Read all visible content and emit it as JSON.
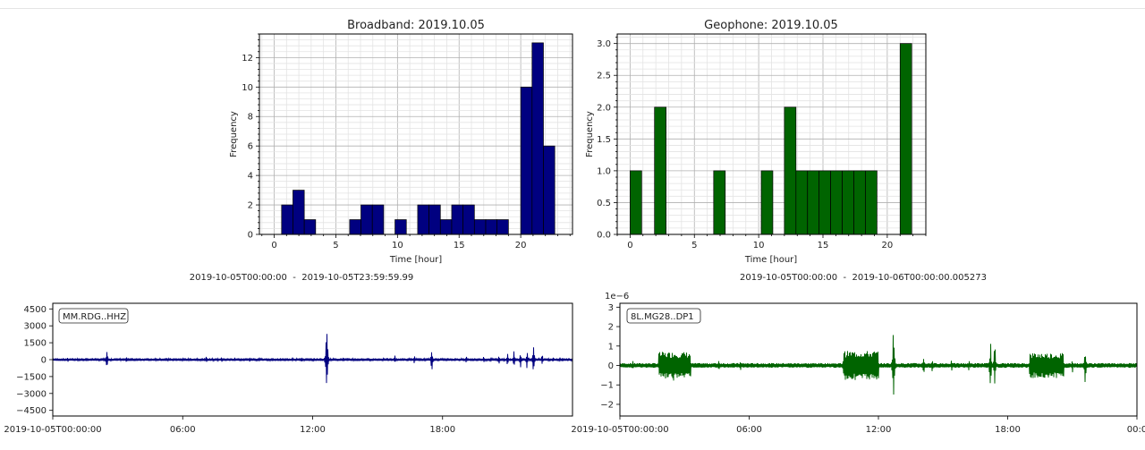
{
  "chart_data": [
    {
      "type": "bar",
      "title": "Broadband: 2019.10.05",
      "xlabel": "Time [hour]",
      "ylabel": "Frequency",
      "bin_width": 0.92,
      "xlim": [
        -1.2,
        24.2
      ],
      "ylim": [
        0,
        13.6
      ],
      "xticks": [
        0,
        5,
        10,
        15,
        20
      ],
      "yticks": [
        0,
        2,
        4,
        6,
        8,
        10,
        12
      ],
      "ytick_labels": [
        "0",
        "2",
        "4",
        "6",
        "8",
        "10",
        "12"
      ],
      "bins": [
        {
          "x": 0.6,
          "value": 2
        },
        {
          "x": 1.52,
          "value": 3
        },
        {
          "x": 2.44,
          "value": 1
        },
        {
          "x": 6.12,
          "value": 1
        },
        {
          "x": 7.04,
          "value": 2
        },
        {
          "x": 7.96,
          "value": 2
        },
        {
          "x": 9.8,
          "value": 1
        },
        {
          "x": 11.64,
          "value": 2
        },
        {
          "x": 12.56,
          "value": 2
        },
        {
          "x": 13.48,
          "value": 1
        },
        {
          "x": 14.4,
          "value": 2
        },
        {
          "x": 15.32,
          "value": 2
        },
        {
          "x": 16.24,
          "value": 1
        },
        {
          "x": 17.16,
          "value": 1
        },
        {
          "x": 18.08,
          "value": 1
        },
        {
          "x": 20.0,
          "value": 10
        },
        {
          "x": 20.92,
          "value": 13
        },
        {
          "x": 21.84,
          "value": 6
        }
      ],
      "color": "#000080",
      "grid": true
    },
    {
      "type": "bar",
      "title": "Geophone: 2019.10.05",
      "xlabel": "Time [hour]",
      "ylabel": "Frequency",
      "bin_width": 0.9,
      "xlim": [
        -1.0,
        23.0
      ],
      "ylim": [
        0,
        3.15
      ],
      "xticks": [
        0,
        5,
        10,
        15,
        20
      ],
      "yticks": [
        0,
        0.5,
        1,
        1.5,
        2,
        2.5,
        3
      ],
      "ytick_labels": [
        "0.0",
        "0.5",
        "1.0",
        "1.5",
        "2.0",
        "2.5",
        "3.0"
      ],
      "bins": [
        {
          "x": 0.0,
          "value": 1
        },
        {
          "x": 1.9,
          "value": 2
        },
        {
          "x": 6.5,
          "value": 1
        },
        {
          "x": 10.2,
          "value": 1
        },
        {
          "x": 12.0,
          "value": 2
        },
        {
          "x": 12.9,
          "value": 1
        },
        {
          "x": 13.8,
          "value": 1
        },
        {
          "x": 14.7,
          "value": 1
        },
        {
          "x": 15.6,
          "value": 1
        },
        {
          "x": 16.5,
          "value": 1
        },
        {
          "x": 17.4,
          "value": 1
        },
        {
          "x": 18.3,
          "value": 1
        },
        {
          "x": 21.0,
          "value": 3
        }
      ],
      "color": "#006400",
      "grid": true
    },
    {
      "type": "line",
      "label": "MM.RDG..HHZ",
      "time_range": "2019-10-05T00:00:00  -  2019-10-05T23:59:59.99",
      "xlim_hours": [
        0,
        24
      ],
      "ylim": [
        -5000,
        5000
      ],
      "yticks": [
        4500,
        3000,
        1500,
        0,
        -1500,
        -3000,
        -4500
      ],
      "ytick_labels": [
        "4500",
        "3000",
        "1500",
        "0",
        "−1500",
        "−3000",
        "−4500"
      ],
      "xticks": [
        0,
        6,
        12,
        18
      ],
      "xtick_labels": [
        "2019-10-05T00:00:00",
        "06:00",
        "12:00",
        "18:00"
      ],
      "noise": 120,
      "color": "#000080",
      "events": [
        {
          "t": 0.7,
          "a": 260
        },
        {
          "t": 1.4,
          "a": 200
        },
        {
          "t": 2.5,
          "a": 1200
        },
        {
          "t": 3.4,
          "a": 320
        },
        {
          "t": 7.1,
          "a": 400
        },
        {
          "t": 7.8,
          "a": 300
        },
        {
          "t": 8.4,
          "a": 280
        },
        {
          "t": 9.1,
          "a": 350
        },
        {
          "t": 11.5,
          "a": 300
        },
        {
          "t": 12.65,
          "a": 4600
        },
        {
          "t": 13.4,
          "a": 250
        },
        {
          "t": 15.8,
          "a": 500
        },
        {
          "t": 16.7,
          "a": 450
        },
        {
          "t": 17.5,
          "a": 1400
        },
        {
          "t": 19.1,
          "a": 380
        },
        {
          "t": 19.9,
          "a": 350
        },
        {
          "t": 20.6,
          "a": 500
        },
        {
          "t": 21.0,
          "a": 700
        },
        {
          "t": 21.3,
          "a": 900
        },
        {
          "t": 21.6,
          "a": 800
        },
        {
          "t": 21.9,
          "a": 1000
        },
        {
          "t": 22.2,
          "a": 1500
        },
        {
          "t": 22.6,
          "a": 600
        },
        {
          "t": 23.1,
          "a": 300
        }
      ]
    },
    {
      "type": "line",
      "label": "8L.MG28..DP1",
      "time_range": "2019-10-05T00:00:00  -  2019-10-06T00:00:00.005273",
      "offset_label": "1e−6",
      "xlim_hours": [
        0,
        24
      ],
      "ylim": [
        -2.6,
        3.2
      ],
      "yticks": [
        3,
        2,
        1,
        0,
        -1,
        -2
      ],
      "ytick_labels": [
        "3",
        "2",
        "1",
        "0",
        "−1",
        "−2"
      ],
      "xticks": [
        0,
        6,
        12,
        18,
        24
      ],
      "xtick_labels": [
        "2019-10-05T00:00:00",
        "06:00",
        "12:00",
        "18:00",
        "00:0"
      ],
      "noise": 0.12,
      "color": "#006400",
      "bursts": [
        {
          "t0": 1.8,
          "t1": 3.3,
          "a": 0.7
        },
        {
          "t0": 10.4,
          "t1": 12.0,
          "a": 0.75
        },
        {
          "t0": 19.0,
          "t1": 20.6,
          "a": 0.65
        }
      ],
      "events": [
        {
          "t": 0.6,
          "a": 0.3
        },
        {
          "t": 2.5,
          "a": 1.3
        },
        {
          "t": 4.6,
          "a": 0.4
        },
        {
          "t": 5.6,
          "a": 0.3
        },
        {
          "t": 10.4,
          "a": 1.0
        },
        {
          "t": 12.7,
          "a": 2.95
        },
        {
          "t": 14.1,
          "a": 0.6
        },
        {
          "t": 14.5,
          "a": 0.5
        },
        {
          "t": 15.4,
          "a": 0.4
        },
        {
          "t": 16.2,
          "a": 0.35
        },
        {
          "t": 17.2,
          "a": 1.6
        },
        {
          "t": 17.4,
          "a": 1.5
        },
        {
          "t": 21.0,
          "a": 0.5
        },
        {
          "t": 21.6,
          "a": 1.2
        }
      ]
    }
  ]
}
